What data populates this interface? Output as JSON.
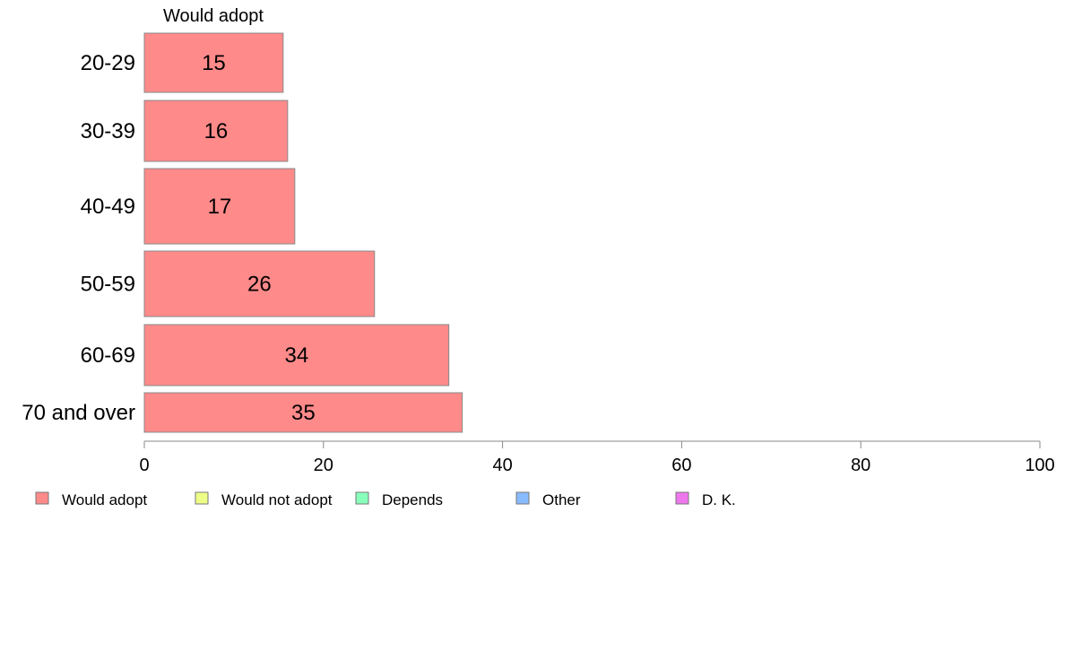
{
  "chart_data": {
    "type": "bar",
    "orientation": "horizontal",
    "title": "",
    "column_header": "Would adopt",
    "categories": [
      "20-29",
      "30-39",
      "40-49",
      "50-59",
      "60-69",
      "70 and over"
    ],
    "series": [
      {
        "name": "Would adopt",
        "values": [
          15.5,
          16,
          16.8,
          25.7,
          34,
          35.5
        ],
        "labels": [
          "15",
          "16",
          "17",
          "26",
          "34",
          "35"
        ]
      }
    ],
    "xlim": [
      0,
      100
    ],
    "xticks": [
      0,
      20,
      40,
      60,
      80,
      100
    ],
    "grid": false,
    "legend": {
      "placement": "bottom-left",
      "entries": [
        {
          "label": "Would adopt",
          "color": "#FF8A8A"
        },
        {
          "label": "Would not adopt",
          "color": "#EEFF88"
        },
        {
          "label": "Depends",
          "color": "#88FFBB"
        },
        {
          "label": "Other",
          "color": "#88BBFF"
        },
        {
          "label": "D. K.",
          "color": "#EE77EE"
        }
      ]
    },
    "colors": {
      "bar": "#FF8A8A",
      "bar_stroke": "#888888",
      "axis": "#888888"
    }
  }
}
